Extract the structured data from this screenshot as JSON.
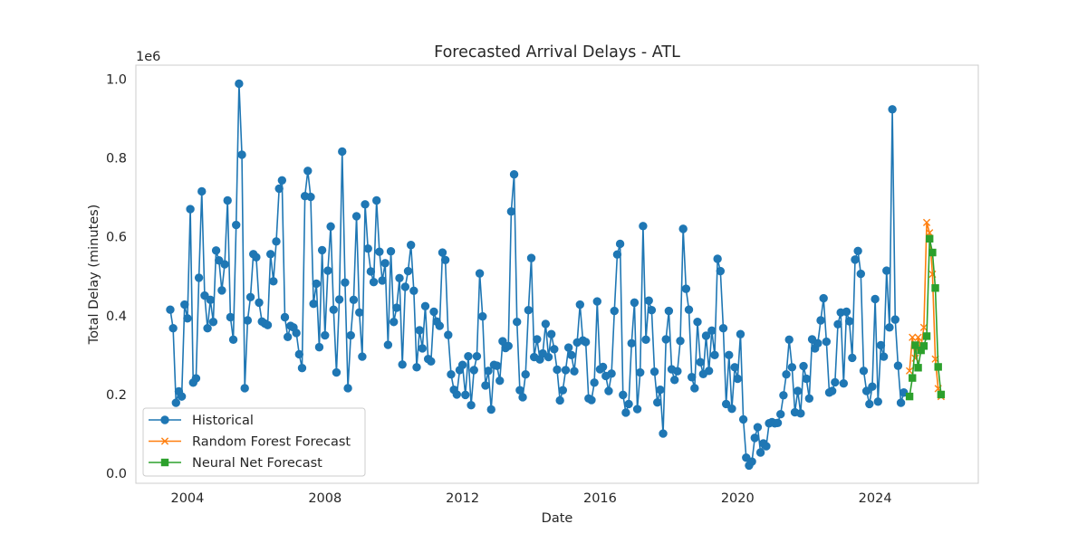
{
  "chart_data": {
    "type": "line",
    "title": "Forecasted Arrival Delays - ATL",
    "xlabel": "Date",
    "ylabel": "Total Delay (minutes)",
    "y_scale_label": "1e6",
    "y_multiplier": 1000000,
    "xlim": [
      2002.5,
      2027.0
    ],
    "ylim": [
      -0.025,
      1.035
    ],
    "x_ticks": [
      2004,
      2008,
      2012,
      2016,
      2020,
      2024
    ],
    "x_tick_labels": [
      "2004",
      "2008",
      "2012",
      "2016",
      "2020",
      "2024"
    ],
    "y_ticks": [
      0.0,
      0.2,
      0.4,
      0.6,
      0.8,
      1.0
    ],
    "y_tick_labels": [
      "0.0",
      "0.2",
      "0.4",
      "0.6",
      "0.8",
      "1.0"
    ],
    "grid": false,
    "legend_position": "lower-left",
    "series": [
      {
        "name": "Historical",
        "color": "#1f77b4",
        "marker": "circle",
        "x_start": 2003.5,
        "x_step": 0.083333,
        "values": [
          0.415,
          0.368,
          0.179,
          0.208,
          0.195,
          0.428,
          0.393,
          0.67,
          0.23,
          0.241,
          0.496,
          0.715,
          0.451,
          0.368,
          0.44,
          0.384,
          0.565,
          0.54,
          0.464,
          0.53,
          0.692,
          0.396,
          0.339,
          0.63,
          0.988,
          0.808,
          0.216,
          0.388,
          0.447,
          0.556,
          0.548,
          0.433,
          0.385,
          0.38,
          0.376,
          0.556,
          0.487,
          0.588,
          0.722,
          0.743,
          0.396,
          0.346,
          0.374,
          0.37,
          0.356,
          0.302,
          0.267,
          0.703,
          0.767,
          0.701,
          0.43,
          0.481,
          0.32,
          0.566,
          0.35,
          0.514,
          0.626,
          0.415,
          0.256,
          0.441,
          0.816,
          0.484,
          0.216,
          0.35,
          0.44,
          0.652,
          0.408,
          0.296,
          0.682,
          0.57,
          0.512,
          0.485,
          0.692,
          0.562,
          0.489,
          0.533,
          0.326,
          0.563,
          0.384,
          0.42,
          0.495,
          0.276,
          0.473,
          0.513,
          0.579,
          0.463,
          0.269,
          0.363,
          0.317,
          0.424,
          0.29,
          0.284,
          0.41,
          0.385,
          0.374,
          0.56,
          0.541,
          0.351,
          0.251,
          0.212,
          0.2,
          0.262,
          0.275,
          0.199,
          0.297,
          0.173,
          0.262,
          0.297,
          0.507,
          0.398,
          0.223,
          0.26,
          0.162,
          0.275,
          0.273,
          0.235,
          0.335,
          0.318,
          0.323,
          0.664,
          0.758,
          0.384,
          0.211,
          0.193,
          0.251,
          0.414,
          0.546,
          0.295,
          0.34,
          0.289,
          0.304,
          0.379,
          0.295,
          0.353,
          0.315,
          0.263,
          0.185,
          0.211,
          0.262,
          0.319,
          0.3,
          0.259,
          0.332,
          0.428,
          0.337,
          0.333,
          0.19,
          0.186,
          0.23,
          0.436,
          0.264,
          0.27,
          0.247,
          0.209,
          0.253,
          0.412,
          0.555,
          0.582,
          0.199,
          0.154,
          0.176,
          0.33,
          0.433,
          0.163,
          0.256,
          0.627,
          0.339,
          0.438,
          0.414,
          0.258,
          0.18,
          0.212,
          0.101,
          0.34,
          0.412,
          0.264,
          0.237,
          0.259,
          0.336,
          0.62,
          0.468,
          0.415,
          0.244,
          0.216,
          0.384,
          0.282,
          0.252,
          0.349,
          0.26,
          0.362,
          0.3,
          0.544,
          0.513,
          0.368,
          0.176,
          0.3,
          0.164,
          0.269,
          0.24,
          0.353,
          0.137,
          0.04,
          0.02,
          0.03,
          0.09,
          0.117,
          0.053,
          0.076,
          0.069,
          0.127,
          0.13,
          0.127,
          0.128,
          0.15,
          0.198,
          0.251,
          0.339,
          0.269,
          0.155,
          0.209,
          0.152,
          0.272,
          0.24,
          0.19,
          0.34,
          0.317,
          0.33,
          0.388,
          0.444,
          0.334,
          0.205,
          0.209,
          0.231,
          0.378,
          0.408,
          0.228,
          0.41,
          0.386,
          0.293,
          0.542,
          0.564,
          0.506,
          0.26,
          0.209,
          0.176,
          0.22,
          0.442,
          0.182,
          0.325,
          0.296,
          0.514,
          0.37,
          0.923,
          0.39,
          0.273,
          0.179,
          0.205
        ]
      },
      {
        "name": "Random Forest Forecast",
        "color": "#ff7f0e",
        "marker": "x",
        "x": [
          2025.0,
          2025.083,
          2025.167,
          2025.25,
          2025.333,
          2025.417,
          2025.5,
          2025.583,
          2025.667,
          2025.75,
          2025.833,
          2025.917
        ],
        "values": [
          0.26,
          0.345,
          0.292,
          0.345,
          0.32,
          0.37,
          0.636,
          0.61,
          0.505,
          0.29,
          0.215,
          0.195
        ]
      },
      {
        "name": "Neural Net Forecast",
        "color": "#2ca02c",
        "marker": "square",
        "x": [
          2025.0,
          2025.083,
          2025.167,
          2025.25,
          2025.333,
          2025.417,
          2025.5,
          2025.583,
          2025.667,
          2025.75,
          2025.833,
          2025.917
        ],
        "values": [
          0.195,
          0.242,
          0.325,
          0.268,
          0.312,
          0.323,
          0.348,
          0.595,
          0.56,
          0.47,
          0.27,
          0.2
        ]
      }
    ]
  }
}
